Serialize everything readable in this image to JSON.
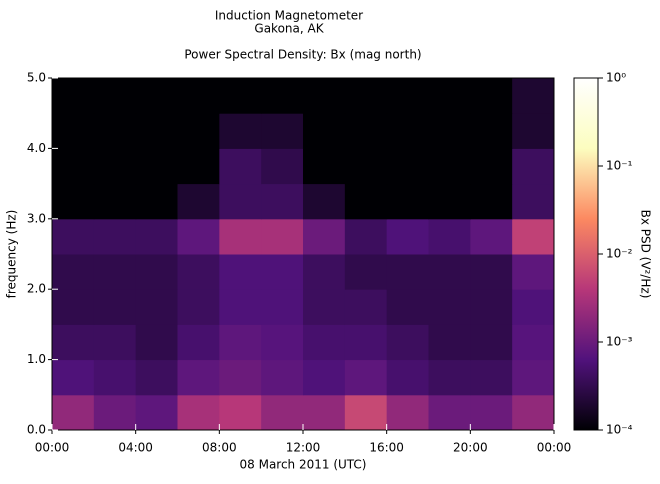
{
  "chart_data": {
    "type": "heatmap",
    "title": "Induction Magnetometer",
    "location": "Gakona, AK",
    "subtitle": "Power Spectral Density: Bx (mag north)",
    "x_label": "08 March 2011 (UTC)",
    "y_label": "frequency (Hz)",
    "colorbar_label": "Bx PSD (V²/Hz)",
    "xlim": [
      0,
      24
    ],
    "xticks": [
      {
        "value": 0,
        "label": "00:00"
      },
      {
        "value": 4,
        "label": "04:00"
      },
      {
        "value": 8,
        "label": "08:00"
      },
      {
        "value": 12,
        "label": "12:00"
      },
      {
        "value": 16,
        "label": "16:00"
      },
      {
        "value": 20,
        "label": "20:00"
      },
      {
        "value": 24,
        "label": "00:00"
      }
    ],
    "ylim": [
      0,
      5
    ],
    "yticks": [
      {
        "value": 0,
        "label": "0.0"
      },
      {
        "value": 1,
        "label": "1.0"
      },
      {
        "value": 2,
        "label": "2.0"
      },
      {
        "value": 3,
        "label": "3.0"
      },
      {
        "value": 4,
        "label": "4.0"
      },
      {
        "value": 5,
        "label": "5.0"
      }
    ],
    "zlim": [
      0.0001,
      1
    ],
    "zscale": "log",
    "zticks": [
      {
        "value": 0.0001,
        "label": "10⁻⁴"
      },
      {
        "value": 0.001,
        "label": "10⁻³"
      },
      {
        "value": 0.01,
        "label": "10⁻²"
      },
      {
        "value": 0.1,
        "label": "10⁻¹"
      },
      {
        "value": 1,
        "label": "10⁰"
      }
    ],
    "colormap": [
      "#000004",
      "#51127c",
      "#b73779",
      "#fc8961",
      "#fcfdbf",
      "#ffffff"
    ],
    "x_bins": [
      0,
      2,
      4,
      6,
      8,
      10,
      12,
      14,
      16,
      18,
      20,
      22,
      24
    ],
    "y_bins": [
      0,
      0.5,
      1,
      1.5,
      2,
      2.5,
      3,
      3.5,
      4,
      4.5,
      5
    ],
    "z": [
      [
        0.002,
        0.001,
        0.0008,
        0.003,
        0.004,
        0.002,
        0.002,
        0.006,
        0.002,
        0.001,
        0.001,
        0.002
      ],
      [
        0.0006,
        0.0005,
        0.0004,
        0.0008,
        0.001,
        0.0008,
        0.0006,
        0.0008,
        0.0005,
        0.0004,
        0.0004,
        0.0008
      ],
      [
        0.0004,
        0.0004,
        0.0003,
        0.0005,
        0.0008,
        0.0007,
        0.0005,
        0.0005,
        0.0004,
        0.0003,
        0.0003,
        0.0007
      ],
      [
        0.0003,
        0.0003,
        0.0003,
        0.0004,
        0.0006,
        0.0006,
        0.0004,
        0.0004,
        0.0003,
        0.0003,
        0.0003,
        0.0006
      ],
      [
        0.0003,
        0.0003,
        0.0003,
        0.0004,
        0.0006,
        0.0006,
        0.0004,
        0.0003,
        0.0003,
        0.0003,
        0.0003,
        0.0008
      ],
      [
        0.0004,
        0.0004,
        0.0004,
        0.0008,
        0.003,
        0.003,
        0.001,
        0.0004,
        0.0006,
        0.0005,
        0.0008,
        0.005
      ],
      [
        0.0001,
        0.0001,
        0.0001,
        0.0002,
        0.0004,
        0.0004,
        0.0002,
        0.0001,
        0.0001,
        0.0001,
        0.0001,
        0.0004
      ],
      [
        0.0001,
        0.0001,
        0.0001,
        0.0001,
        0.0004,
        0.0003,
        0.0001,
        0.0001,
        0.0001,
        0.0001,
        0.0001,
        0.0004
      ],
      [
        0.0001,
        0.0001,
        0.0001,
        0.0001,
        0.0002,
        0.0002,
        0.0001,
        0.0001,
        0.0001,
        0.0001,
        0.0001,
        0.0002
      ],
      [
        0.0001,
        0.0001,
        0.0001,
        0.0001,
        0.0001,
        0.0001,
        0.0001,
        0.0001,
        0.0001,
        0.0001,
        0.0001,
        0.0002
      ]
    ]
  }
}
